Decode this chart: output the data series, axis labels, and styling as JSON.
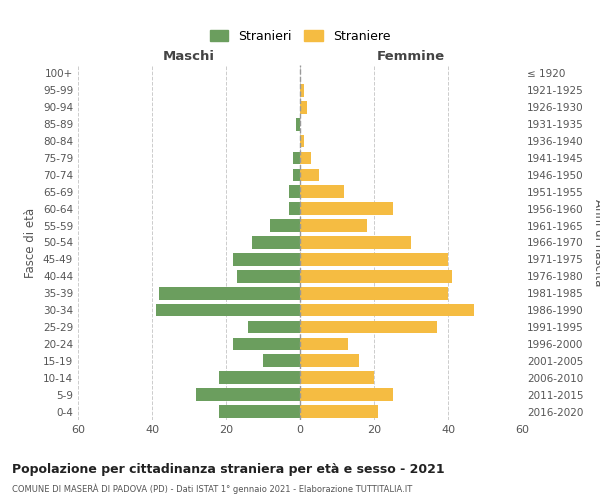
{
  "age_groups": [
    "100+",
    "95-99",
    "90-94",
    "85-89",
    "80-84",
    "75-79",
    "70-74",
    "65-69",
    "60-64",
    "55-59",
    "50-54",
    "45-49",
    "40-44",
    "35-39",
    "30-34",
    "25-29",
    "20-24",
    "15-19",
    "10-14",
    "5-9",
    "0-4"
  ],
  "birth_years": [
    "≤ 1920",
    "1921-1925",
    "1926-1930",
    "1931-1935",
    "1936-1940",
    "1941-1945",
    "1946-1950",
    "1951-1955",
    "1956-1960",
    "1961-1965",
    "1966-1970",
    "1971-1975",
    "1976-1980",
    "1981-1985",
    "1986-1990",
    "1991-1995",
    "1996-2000",
    "2001-2005",
    "2006-2010",
    "2011-2015",
    "2016-2020"
  ],
  "maschi": [
    0,
    0,
    0,
    1,
    0,
    2,
    2,
    3,
    3,
    8,
    13,
    18,
    17,
    38,
    39,
    14,
    18,
    10,
    22,
    28,
    22
  ],
  "femmine": [
    0,
    1,
    2,
    0,
    1,
    3,
    5,
    12,
    25,
    18,
    30,
    40,
    41,
    40,
    47,
    37,
    13,
    16,
    20,
    25,
    21
  ],
  "color_maschi": "#6b9e5e",
  "color_femmine": "#f5bc42",
  "title": "Popolazione per cittadinanza straniera per età e sesso - 2021",
  "subtitle": "COMUNE DI MASERÀ DI PADOVA (PD) - Dati ISTAT 1° gennaio 2021 - Elaborazione TUTTITALIA.IT",
  "xlabel_left": "Maschi",
  "xlabel_right": "Femmine",
  "ylabel_left": "Fasce di età",
  "ylabel_right": "Anni di nascita",
  "legend_maschi": "Stranieri",
  "legend_femmine": "Straniere",
  "xlim": 60,
  "background_color": "#ffffff",
  "grid_color": "#cccccc"
}
